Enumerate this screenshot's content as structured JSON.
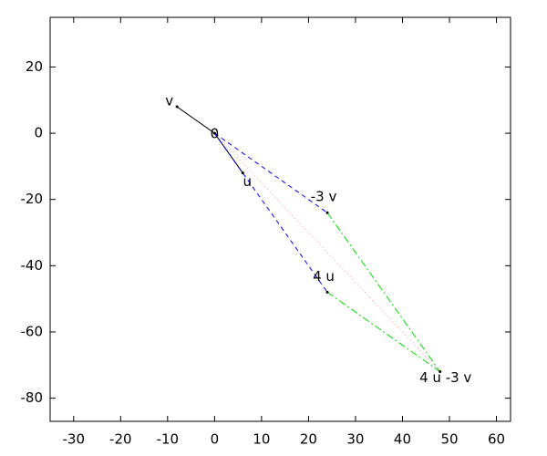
{
  "chart_data": {
    "type": "vectors",
    "xlim": [
      -35,
      63
    ],
    "ylim": [
      -87,
      35
    ],
    "xticks": [
      -30,
      -20,
      -10,
      0,
      10,
      20,
      30,
      40,
      50,
      60
    ],
    "yticks": [
      -80,
      -60,
      -40,
      -20,
      0,
      20
    ],
    "points": [
      {
        "label": "v",
        "x": -8,
        "y": 8
      },
      {
        "label": "0",
        "x": 0,
        "y": 0
      },
      {
        "label": "u",
        "x": 6,
        "y": -12
      },
      {
        "label": "-3 v",
        "x": 24,
        "y": -24
      },
      {
        "label": "4 u",
        "x": 24,
        "y": -48
      },
      {
        "label": "4 u -3 v",
        "x": 48,
        "y": -72
      }
    ],
    "segments": [
      {
        "x": [
          0,
          -8
        ],
        "y": [
          0,
          8
        ],
        "color": "#000000",
        "style": "solid"
      },
      {
        "x": [
          0,
          6
        ],
        "y": [
          0,
          -12
        ],
        "color": "#000000",
        "style": "solid"
      },
      {
        "x": [
          0,
          24
        ],
        "y": [
          0,
          -24
        ],
        "color": "#0000ff",
        "style": "dashed"
      },
      {
        "x": [
          0,
          24
        ],
        "y": [
          0,
          -48
        ],
        "color": "#0000ff",
        "style": "dashed"
      },
      {
        "x": [
          24,
          48
        ],
        "y": [
          -24,
          -72
        ],
        "color": "#00dd00",
        "style": "dashdot"
      },
      {
        "x": [
          24,
          48
        ],
        "y": [
          -48,
          -72
        ],
        "color": "#00dd00",
        "style": "dashdot"
      },
      {
        "x": [
          0,
          48
        ],
        "y": [
          0,
          -72
        ],
        "color": "#ff9999",
        "style": "dotted"
      }
    ]
  }
}
